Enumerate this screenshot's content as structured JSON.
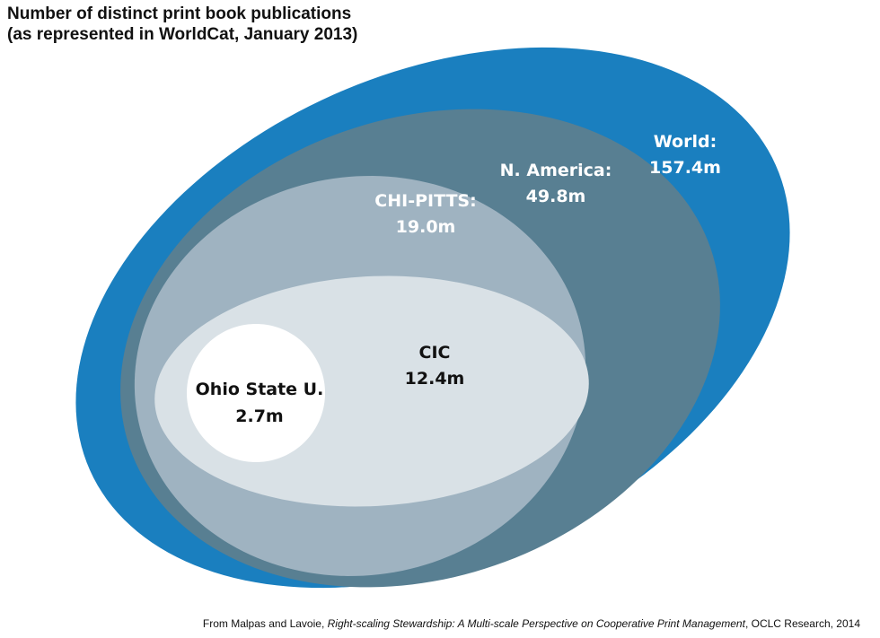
{
  "title": {
    "line1": "Number of distinct print book publications",
    "line2": "(as represented in WorldCat, January 2013)"
  },
  "sets": [
    {
      "name": "World:",
      "value": "157.4m",
      "color": "#1a7fbf",
      "text_color": "#ffffff"
    },
    {
      "name": "N. America:",
      "value": "49.8m",
      "color": "#587f92",
      "text_color": "#ffffff"
    },
    {
      "name": "CHI-PITTS:",
      "value": "19.0m",
      "color": "#9fb3c1",
      "text_color": "#ffffff"
    },
    {
      "name": "CIC",
      "value": "12.4m",
      "color": "#d9e1e6",
      "text_color": "#111111"
    },
    {
      "name": "Ohio State U.",
      "value": "2.7m",
      "color": "#ffffff",
      "text_color": "#111111"
    }
  ],
  "footer": {
    "prefix": "From Malpas and Lavoie, ",
    "work": "Right-scaling Stewardship: A Multi-scale Perspective on Cooperative Print Management",
    "suffix": ", OCLC Research, 2014"
  }
}
